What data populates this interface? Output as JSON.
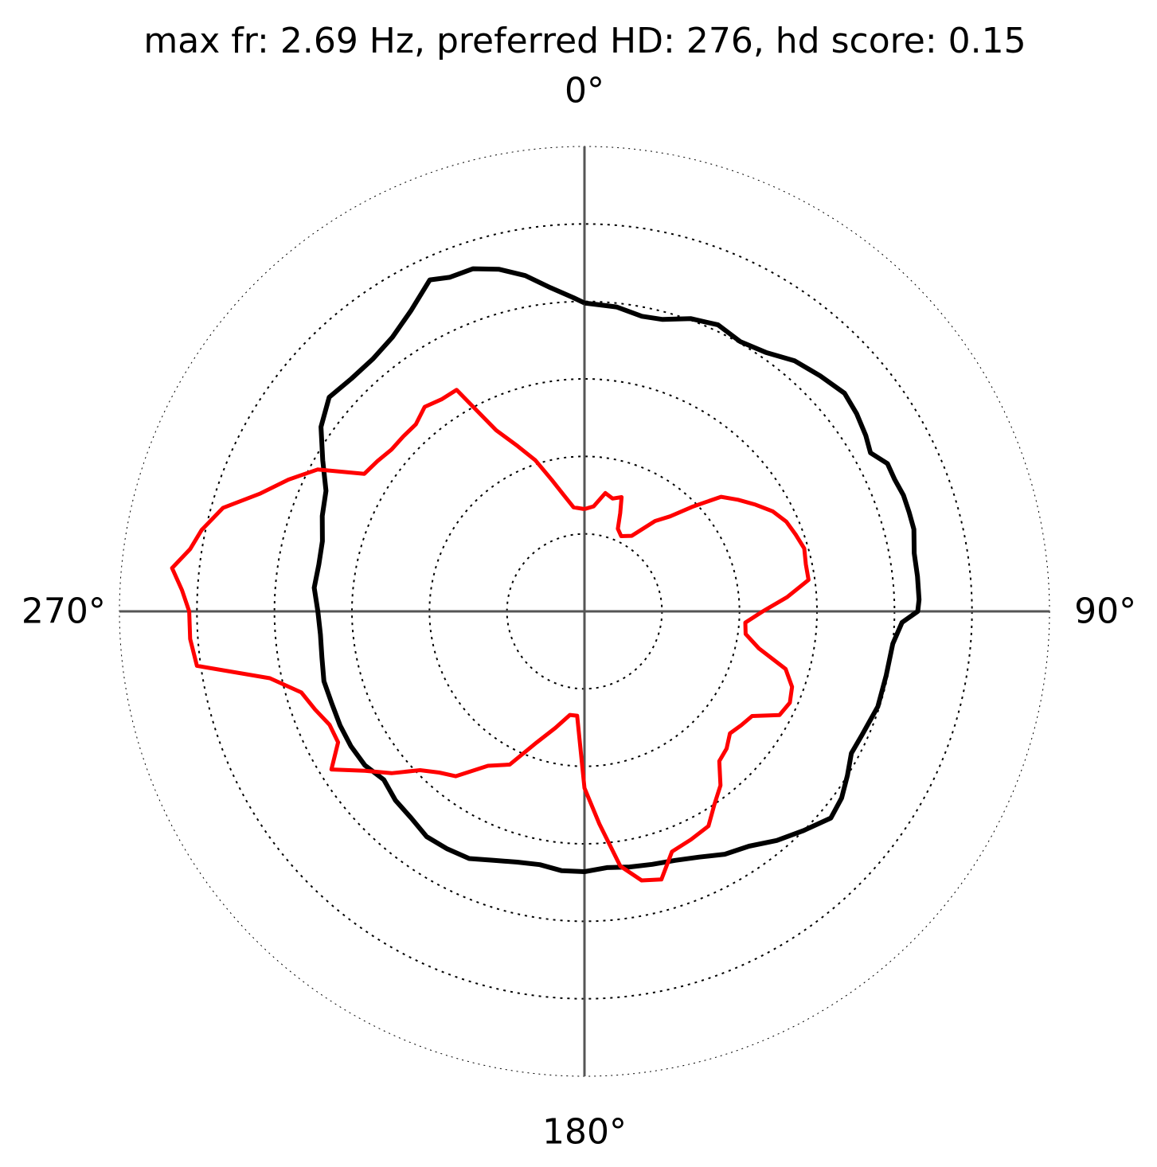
{
  "chart_data": {
    "type": "polar-line",
    "title": "max fr: 2.69 Hz, preferred HD: 276, hd score: 0.15",
    "theta_direction": "clockwise",
    "theta_zero": "top",
    "angle_ticks": [
      {
        "angle": 0,
        "label": "0°"
      },
      {
        "angle": 90,
        "label": "90°"
      },
      {
        "angle": 180,
        "label": "180°"
      },
      {
        "angle": 270,
        "label": "270°"
      }
    ],
    "r_rings": [
      1,
      2,
      3,
      4,
      5,
      6
    ],
    "r_max": 6,
    "grid": true,
    "colors": {
      "series_0": "#000000",
      "series_1": "#ff0000"
    },
    "series": [
      {
        "color": "#000000",
        "points": [
          [
            0,
            3.98
          ],
          [
            6,
            3.95
          ],
          [
            11,
            3.88
          ],
          [
            15,
            3.9
          ],
          [
            20,
            4.02
          ],
          [
            25,
            4.08
          ],
          [
            30,
            4.02
          ],
          [
            35,
            4.08
          ],
          [
            40,
            4.22
          ],
          [
            45,
            4.3
          ],
          [
            50,
            4.38
          ],
          [
            54,
            4.34
          ],
          [
            58,
            4.28
          ],
          [
            61,
            4.22
          ],
          [
            64,
            4.35
          ],
          [
            67,
            4.35
          ],
          [
            70,
            4.38
          ],
          [
            73,
            4.38
          ],
          [
            76,
            4.38
          ],
          [
            80,
            4.32
          ],
          [
            84,
            4.32
          ],
          [
            88,
            4.32
          ],
          [
            90,
            4.3
          ],
          [
            92,
            4.1
          ],
          [
            96,
            4.0
          ],
          [
            102,
            3.98
          ],
          [
            108,
            3.98
          ],
          [
            114,
            3.92
          ],
          [
            118,
            3.9
          ],
          [
            122,
            4.0
          ],
          [
            126,
            4.1
          ],
          [
            130,
            4.15
          ],
          [
            135,
            4.0
          ],
          [
            140,
            3.86
          ],
          [
            145,
            3.7
          ],
          [
            150,
            3.62
          ],
          [
            155,
            3.5
          ],
          [
            160,
            3.42
          ],
          [
            165,
            3.38
          ],
          [
            170,
            3.35
          ],
          [
            175,
            3.32
          ],
          [
            180,
            3.36
          ],
          [
            185,
            3.36
          ],
          [
            190,
            3.32
          ],
          [
            195,
            3.35
          ],
          [
            200,
            3.42
          ],
          [
            205,
            3.52
          ],
          [
            210,
            3.54
          ],
          [
            215,
            3.55
          ],
          [
            220,
            3.48
          ],
          [
            225,
            3.45
          ],
          [
            230,
            3.38
          ],
          [
            235,
            3.46
          ],
          [
            240,
            3.48
          ],
          [
            245,
            3.48
          ],
          [
            250,
            3.47
          ],
          [
            255,
            3.48
          ],
          [
            260,
            3.44
          ],
          [
            265,
            3.42
          ],
          [
            270,
            3.44
          ],
          [
            275,
            3.5
          ],
          [
            280,
            3.48
          ],
          [
            285,
            3.5
          ],
          [
            290,
            3.6
          ],
          [
            295,
            3.68
          ],
          [
            300,
            3.9
          ],
          [
            305,
            4.15
          ],
          [
            310,
            4.3
          ],
          [
            315,
            4.25
          ],
          [
            320,
            4.25
          ],
          [
            325,
            4.32
          ],
          [
            330,
            4.48
          ],
          [
            335,
            4.72
          ],
          [
            338,
            4.65
          ],
          [
            342,
            4.65
          ],
          [
            346,
            4.55
          ],
          [
            350,
            4.4
          ],
          [
            354,
            4.2
          ],
          [
            358,
            4.05
          ],
          [
            360,
            3.98
          ]
        ]
      },
      {
        "color": "#ff0000",
        "points": [
          [
            0,
            1.32
          ],
          [
            5,
            1.36
          ],
          [
            10,
            1.55
          ],
          [
            14,
            1.5
          ],
          [
            18,
            1.55
          ],
          [
            20,
            1.35
          ],
          [
            22,
            1.15
          ],
          [
            26,
            1.08
          ],
          [
            32,
            1.15
          ],
          [
            38,
            1.48
          ],
          [
            42,
            1.65
          ],
          [
            46,
            1.95
          ],
          [
            50,
            2.3
          ],
          [
            54,
            2.45
          ],
          [
            58,
            2.6
          ],
          [
            62,
            2.75
          ],
          [
            66,
            2.85
          ],
          [
            70,
            2.9
          ],
          [
            74,
            2.95
          ],
          [
            78,
            2.92
          ],
          [
            82,
            2.92
          ],
          [
            86,
            2.62
          ],
          [
            90,
            2.3
          ],
          [
            94,
            2.08
          ],
          [
            98,
            2.1
          ],
          [
            102,
            2.3
          ],
          [
            106,
            2.7
          ],
          [
            110,
            2.85
          ],
          [
            114,
            2.9
          ],
          [
            118,
            2.85
          ],
          [
            122,
            2.55
          ],
          [
            126,
            2.5
          ],
          [
            130,
            2.45
          ],
          [
            134,
            2.55
          ],
          [
            138,
            2.6
          ],
          [
            142,
            2.85
          ],
          [
            146,
            3.0
          ],
          [
            150,
            3.2
          ],
          [
            155,
            3.25
          ],
          [
            160,
            3.3
          ],
          [
            164,
            3.6
          ],
          [
            168,
            3.55
          ],
          [
            172,
            3.32
          ],
          [
            176,
            2.75
          ],
          [
            180,
            2.28
          ],
          [
            184,
            1.35
          ],
          [
            188,
            1.35
          ],
          [
            194,
            1.55
          ],
          [
            200,
            1.8
          ],
          [
            206,
            2.2
          ],
          [
            212,
            2.35
          ],
          [
            218,
            2.7
          ],
          [
            222,
            2.8
          ],
          [
            226,
            2.95
          ],
          [
            230,
            3.25
          ],
          [
            234,
            3.5
          ],
          [
            238,
            3.85
          ],
          [
            242,
            3.6
          ],
          [
            246,
            3.6
          ],
          [
            250,
            3.7
          ],
          [
            254,
            3.8
          ],
          [
            258,
            4.15
          ],
          [
            262,
            5.05
          ],
          [
            266,
            5.1
          ],
          [
            270,
            5.1
          ],
          [
            273,
            5.2
          ],
          [
            276,
            5.35
          ],
          [
            279,
            5.15
          ],
          [
            282,
            5.05
          ],
          [
            286,
            4.85
          ],
          [
            290,
            4.45
          ],
          [
            294,
            4.18
          ],
          [
            298,
            3.9
          ],
          [
            302,
            3.35
          ],
          [
            306,
            3.3
          ],
          [
            310,
            3.25
          ],
          [
            314,
            3.25
          ],
          [
            318,
            3.25
          ],
          [
            322,
            3.35
          ],
          [
            326,
            3.3
          ],
          [
            330,
            3.3
          ],
          [
            334,
            2.6
          ],
          [
            338,
            2.3
          ],
          [
            342,
            2.05
          ],
          [
            346,
            1.75
          ],
          [
            350,
            1.52
          ],
          [
            354,
            1.35
          ],
          [
            360,
            1.32
          ]
        ]
      }
    ]
  }
}
